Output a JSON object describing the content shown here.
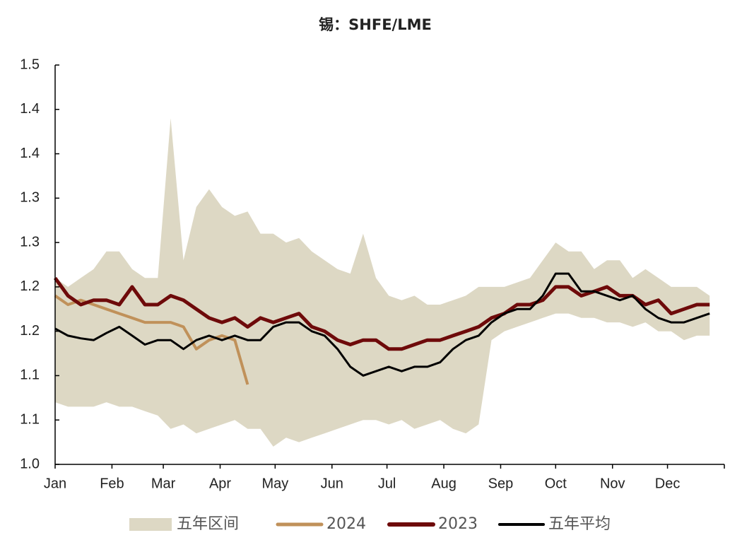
{
  "chart_data": {
    "type": "line",
    "title": "锡：SHFE/LME",
    "xlim": [
      0,
      365
    ],
    "xticks": [
      {
        "value": 0,
        "label": "Jan"
      },
      {
        "value": 31,
        "label": "Feb"
      },
      {
        "value": 59,
        "label": "Mar"
      },
      {
        "value": 90,
        "label": "Apr"
      },
      {
        "value": 120,
        "label": "May"
      },
      {
        "value": 151,
        "label": "Jun"
      },
      {
        "value": 181,
        "label": "Jul"
      },
      {
        "value": 212,
        "label": "Aug"
      },
      {
        "value": 243,
        "label": "Sep"
      },
      {
        "value": 273,
        "label": "Oct"
      },
      {
        "value": 304,
        "label": "Nov"
      },
      {
        "value": 334,
        "label": "Dec"
      }
    ],
    "ylim": [
      1.0,
      1.45
    ],
    "yticks": [
      {
        "value": 1.0,
        "label": "1.0"
      },
      {
        "value": 1.05,
        "label": "1.1"
      },
      {
        "value": 1.1,
        "label": "1.1"
      },
      {
        "value": 1.15,
        "label": "1.2"
      },
      {
        "value": 1.2,
        "label": "1.2"
      },
      {
        "value": 1.25,
        "label": "1.3"
      },
      {
        "value": 1.3,
        "label": "1.3"
      },
      {
        "value": 1.35,
        "label": "1.4"
      },
      {
        "value": 1.4,
        "label": "1.4"
      },
      {
        "value": 1.45,
        "label": "1.5"
      }
    ],
    "grid": false,
    "x": [
      0,
      7,
      14,
      21,
      28,
      35,
      42,
      49,
      56,
      63,
      70,
      77,
      84,
      91,
      98,
      105,
      112,
      119,
      126,
      133,
      140,
      147,
      154,
      161,
      168,
      175,
      182,
      189,
      196,
      203,
      210,
      217,
      224,
      231,
      238,
      245,
      252,
      259,
      266,
      273,
      280,
      287,
      294,
      301,
      308,
      315,
      322,
      329,
      336,
      343,
      350,
      357
    ],
    "band": {
      "name": "五年区间",
      "color": "#ddd8c4",
      "upper": [
        1.21,
        1.2,
        1.21,
        1.22,
        1.24,
        1.24,
        1.22,
        1.21,
        1.21,
        1.39,
        1.23,
        1.29,
        1.31,
        1.29,
        1.28,
        1.285,
        1.26,
        1.26,
        1.25,
        1.255,
        1.24,
        1.23,
        1.22,
        1.215,
        1.26,
        1.21,
        1.19,
        1.185,
        1.19,
        1.18,
        1.18,
        1.185,
        1.19,
        1.2,
        1.2,
        1.2,
        1.205,
        1.21,
        1.23,
        1.25,
        1.24,
        1.24,
        1.22,
        1.23,
        1.23,
        1.21,
        1.22,
        1.21,
        1.2,
        1.2,
        1.2,
        1.19
      ],
      "lower": [
        1.07,
        1.065,
        1.065,
        1.065,
        1.07,
        1.065,
        1.065,
        1.06,
        1.055,
        1.04,
        1.045,
        1.035,
        1.04,
        1.045,
        1.05,
        1.04,
        1.04,
        1.02,
        1.03,
        1.025,
        1.03,
        1.035,
        1.04,
        1.045,
        1.05,
        1.05,
        1.045,
        1.05,
        1.04,
        1.045,
        1.05,
        1.04,
        1.035,
        1.045,
        1.14,
        1.15,
        1.155,
        1.16,
        1.165,
        1.17,
        1.17,
        1.165,
        1.165,
        1.16,
        1.16,
        1.155,
        1.16,
        1.15,
        1.15,
        1.14,
        1.145,
        1.145
      ]
    },
    "series": [
      {
        "name": "2024",
        "color": "#c0915a",
        "values": [
          1.19,
          1.18,
          1.185,
          1.18,
          1.175,
          1.17,
          1.165,
          1.16,
          1.16,
          1.16,
          1.155,
          1.13,
          1.14,
          1.145,
          1.14,
          1.09,
          null,
          null,
          null,
          null,
          null,
          null,
          null,
          null,
          null,
          null,
          null,
          null,
          null,
          null,
          null,
          null,
          null,
          null,
          null,
          null,
          null,
          null,
          null,
          null,
          null,
          null,
          null,
          null,
          null,
          null,
          null,
          null,
          null,
          null,
          null,
          null
        ]
      },
      {
        "name": "2023",
        "color": "#6e0a0a",
        "values": [
          1.21,
          1.19,
          1.18,
          1.185,
          1.185,
          1.18,
          1.2,
          1.18,
          1.18,
          1.19,
          1.185,
          1.175,
          1.165,
          1.16,
          1.165,
          1.155,
          1.165,
          1.16,
          1.165,
          1.17,
          1.155,
          1.15,
          1.14,
          1.135,
          1.14,
          1.14,
          1.13,
          1.13,
          1.135,
          1.14,
          1.14,
          1.145,
          1.15,
          1.155,
          1.165,
          1.17,
          1.18,
          1.18,
          1.185,
          1.2,
          1.2,
          1.19,
          1.195,
          1.2,
          1.19,
          1.19,
          1.18,
          1.185,
          1.17,
          1.175,
          1.18,
          1.18
        ]
      },
      {
        "name": "五年平均",
        "color": "#000000",
        "values": [
          1.153,
          1.145,
          1.142,
          1.14,
          1.148,
          1.155,
          1.145,
          1.135,
          1.14,
          1.14,
          1.13,
          1.14,
          1.145,
          1.14,
          1.145,
          1.14,
          1.14,
          1.155,
          1.16,
          1.16,
          1.15,
          1.145,
          1.13,
          1.11,
          1.1,
          1.105,
          1.11,
          1.105,
          1.11,
          1.11,
          1.115,
          1.13,
          1.14,
          1.145,
          1.16,
          1.17,
          1.175,
          1.175,
          1.19,
          1.215,
          1.215,
          1.195,
          1.195,
          1.19,
          1.185,
          1.19,
          1.175,
          1.165,
          1.16,
          1.16,
          1.165,
          1.17
        ]
      }
    ]
  }
}
